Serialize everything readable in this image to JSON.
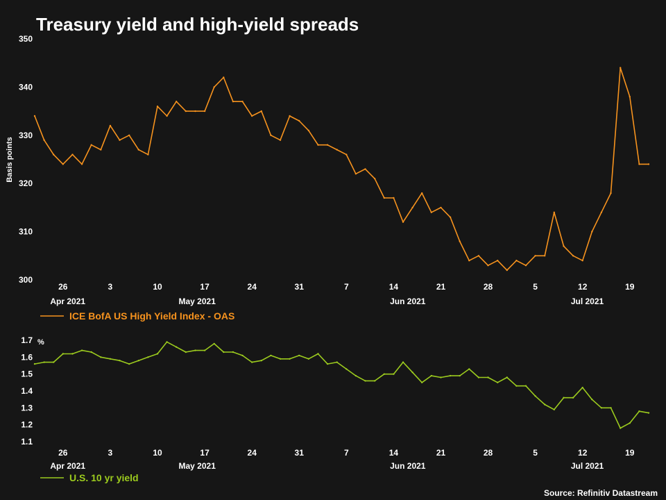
{
  "chart_data": [
    {
      "type": "line",
      "title": "Treasury yield and high-yield spreads",
      "ylabel": "Basis points",
      "ylim": [
        300,
        350
      ],
      "yticks": [
        "300",
        "310",
        "320",
        "330",
        "340",
        "350"
      ],
      "day_ticks": [
        "26",
        "3",
        "10",
        "17",
        "24",
        "31",
        "7",
        "14",
        "21",
        "28",
        "5",
        "12",
        "19"
      ],
      "month_labels": [
        "Apr 2021",
        "May 2021",
        "Jun 2021",
        "Jul 2021"
      ],
      "grid": false,
      "legend_position": "bottom-left",
      "series": [
        {
          "name": "ICE BofA US High Yield Index - OAS",
          "color": "#f7931e",
          "values": [
            334,
            329,
            326,
            324,
            326,
            324,
            328,
            327,
            332,
            329,
            330,
            327,
            326,
            336,
            334,
            337,
            335,
            335,
            335,
            340,
            342,
            337,
            337,
            334,
            335,
            330,
            329,
            334,
            333,
            331,
            328,
            328,
            327,
            326,
            322,
            323,
            321,
            317,
            317,
            312,
            315,
            318,
            314,
            315,
            313,
            308,
            304,
            305,
            303,
            304,
            302,
            304,
            303,
            305,
            305,
            314,
            307,
            305,
            304,
            310,
            314,
            318,
            344,
            338,
            324,
            324
          ]
        }
      ]
    },
    {
      "type": "line",
      "ylabel": "%",
      "ylim": [
        1.1,
        1.7
      ],
      "yticks": [
        "1.1",
        "1.2",
        "1.3",
        "1.4",
        "1.5",
        "1.6",
        "1.7"
      ],
      "day_ticks": [
        "26",
        "3",
        "10",
        "17",
        "24",
        "31",
        "7",
        "14",
        "21",
        "28",
        "5",
        "12",
        "19"
      ],
      "month_labels": [
        "Apr 2021",
        "May 2021",
        "Jun 2021",
        "Jul 2021"
      ],
      "grid": false,
      "legend_position": "bottom-left",
      "series": [
        {
          "name": "U.S. 10 yr yield",
          "color": "#9ccb1e",
          "values": [
            1.56,
            1.57,
            1.57,
            1.62,
            1.62,
            1.64,
            1.63,
            1.6,
            1.59,
            1.58,
            1.56,
            1.58,
            1.6,
            1.62,
            1.69,
            1.66,
            1.63,
            1.64,
            1.64,
            1.68,
            1.63,
            1.63,
            1.61,
            1.57,
            1.58,
            1.61,
            1.59,
            1.59,
            1.61,
            1.59,
            1.62,
            1.56,
            1.57,
            1.53,
            1.49,
            1.46,
            1.46,
            1.5,
            1.5,
            1.57,
            1.51,
            1.45,
            1.49,
            1.48,
            1.49,
            1.49,
            1.53,
            1.48,
            1.48,
            1.45,
            1.48,
            1.43,
            1.43,
            1.37,
            1.32,
            1.29,
            1.36,
            1.36,
            1.42,
            1.35,
            1.3,
            1.3,
            1.18,
            1.21,
            1.28,
            1.27
          ]
        }
      ]
    }
  ],
  "source": "Source: Refinitiv Datastream"
}
